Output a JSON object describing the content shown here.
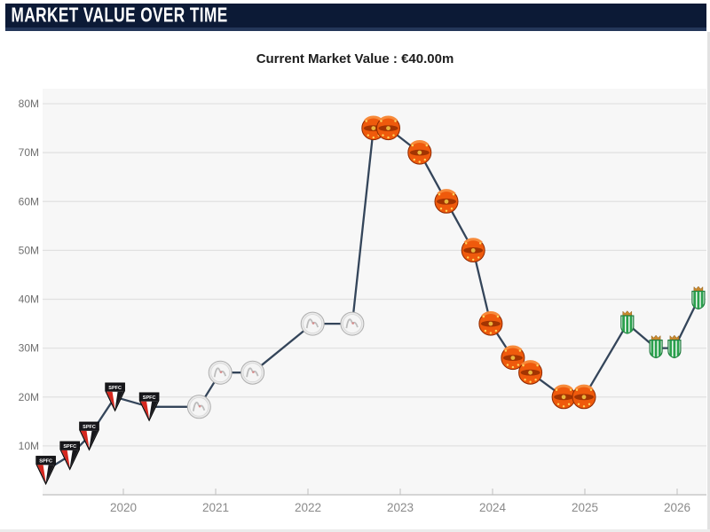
{
  "header": {
    "title": "MARKET VALUE OVER TIME"
  },
  "subtitle": {
    "text": "Current Market Value : €40.00m"
  },
  "colors": {
    "header_bg": "#0c1a36",
    "header_accent": "#243659",
    "plot_bg": "#f7f7f7",
    "grid_color": "#e1e1e1",
    "axis_color": "#c9c9c9",
    "line_color": "#34455a",
    "tick_label_color": "#8a8a8a",
    "y_label_color": "#6f6f6f",
    "spfc_red": "#d5281f",
    "spfc_black": "#17171b",
    "ajax_silver": "#eaeaea",
    "manutd_orange": "#ef5a0c",
    "manutd_dark": "#a33402",
    "betis_green": "#2aa04d",
    "betis_crown": "#c98a2e"
  },
  "chart_data": {
    "type": "line",
    "title": "Market value over time",
    "unit": "€ million",
    "current_value": "€40.00m",
    "xlabel": "",
    "ylabel": "",
    "xlim": [
      2019.0,
      2026.55
    ],
    "ylim": [
      0,
      83
    ],
    "grid": true,
    "x_ticks": [
      2020,
      2021,
      2022,
      2023,
      2024,
      2025,
      2026
    ],
    "x_tick_labels": [
      "2020",
      "2021",
      "2022",
      "2023",
      "2024",
      "2025",
      "2026"
    ],
    "y_ticks": [
      10,
      20,
      30,
      40,
      50,
      60,
      70,
      80
    ],
    "y_tick_labels": [
      "10M",
      "20M",
      "30M",
      "40M",
      "50M",
      "60M",
      "70M",
      "80M"
    ],
    "clubs": [
      {
        "id": "spfc",
        "icon": "sao-paulo-fc-crest"
      },
      {
        "id": "ajax",
        "icon": "ajax-amsterdam-crest"
      },
      {
        "id": "manutd",
        "icon": "manchester-united-crest"
      },
      {
        "id": "betis",
        "icon": "real-betis-crest"
      }
    ],
    "points": [
      {
        "x": 2019.16,
        "value": 5,
        "club": "spfc"
      },
      {
        "x": 2019.42,
        "value": 8,
        "club": "spfc"
      },
      {
        "x": 2019.63,
        "value": 12,
        "club": "spfc"
      },
      {
        "x": 2019.91,
        "value": 20,
        "club": "spfc"
      },
      {
        "x": 2020.28,
        "value": 18,
        "club": "spfc"
      },
      {
        "x": 2020.82,
        "value": 18,
        "club": "ajax"
      },
      {
        "x": 2021.05,
        "value": 25,
        "club": "ajax"
      },
      {
        "x": 2021.4,
        "value": 25,
        "club": "ajax"
      },
      {
        "x": 2022.05,
        "value": 35,
        "club": "ajax"
      },
      {
        "x": 2022.48,
        "value": 35,
        "club": "ajax"
      },
      {
        "x": 2022.71,
        "value": 75,
        "club": "manutd"
      },
      {
        "x": 2022.87,
        "value": 75,
        "club": "manutd"
      },
      {
        "x": 2023.21,
        "value": 70,
        "club": "manutd"
      },
      {
        "x": 2023.5,
        "value": 60,
        "club": "manutd"
      },
      {
        "x": 2023.79,
        "value": 50,
        "club": "manutd"
      },
      {
        "x": 2023.98,
        "value": 35,
        "club": "manutd"
      },
      {
        "x": 2024.22,
        "value": 28,
        "club": "manutd"
      },
      {
        "x": 2024.41,
        "value": 25,
        "club": "manutd"
      },
      {
        "x": 2024.77,
        "value": 20,
        "club": "manutd"
      },
      {
        "x": 2024.99,
        "value": 20,
        "club": "manutd"
      },
      {
        "x": 2025.46,
        "value": 35,
        "club": "betis"
      },
      {
        "x": 2025.77,
        "value": 30,
        "club": "betis"
      },
      {
        "x": 2025.97,
        "value": 30,
        "club": "betis"
      },
      {
        "x": 2026.23,
        "value": 40,
        "club": "betis"
      }
    ]
  }
}
